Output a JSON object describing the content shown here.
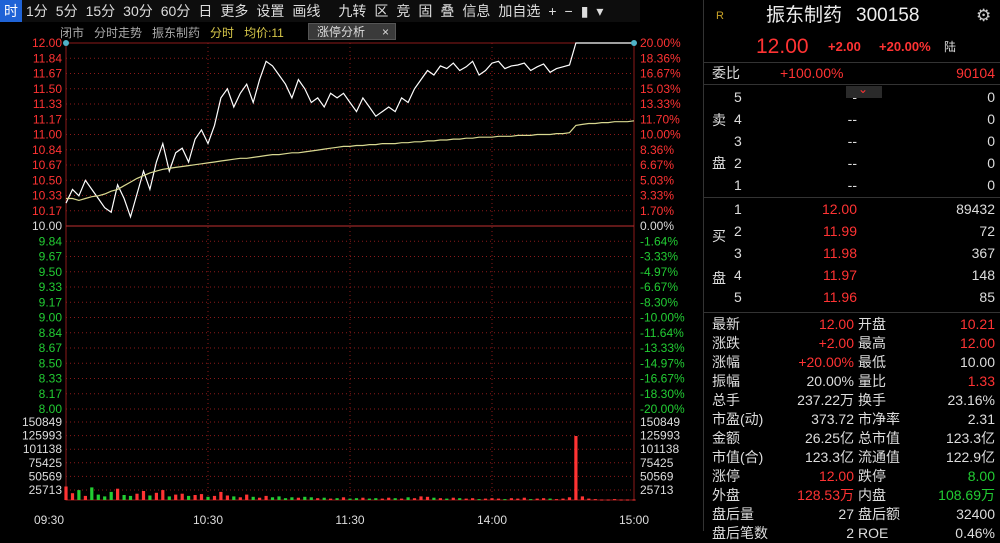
{
  "toolbar": {
    "items": [
      "时",
      "1分",
      "5分",
      "15分",
      "30分",
      "60分",
      "日",
      "更多",
      "设置",
      "画线",
      "九转",
      "区",
      "竞",
      "固",
      "叠",
      "信息",
      "加自选",
      "+",
      "−",
      "▮",
      "▾"
    ]
  },
  "chart_header": {
    "status": "闭市",
    "view": "分时走势",
    "stock": "振东制药",
    "label_time": "分时",
    "label_avg": "均价:11",
    "limit_button": "涨停分析",
    "close_mark": "×"
  },
  "chart_data": {
    "type": "line",
    "title": "",
    "price_ticks": [
      "12.00",
      "11.84",
      "11.67",
      "11.50",
      "11.33",
      "11.17",
      "11.00",
      "10.84",
      "10.67",
      "10.50",
      "10.33",
      "10.17",
      "10.00",
      "9.84",
      "9.67",
      "9.50",
      "9.33",
      "9.17",
      "9.00",
      "8.84",
      "8.67",
      "8.50",
      "8.33",
      "8.17",
      "8.00"
    ],
    "pct_ticks": [
      "20.00%",
      "18.36%",
      "16.67%",
      "15.03%",
      "13.33%",
      "11.70%",
      "10.00%",
      "8.36%",
      "6.67%",
      "5.03%",
      "3.33%",
      "1.70%",
      "0.00%",
      "-1.64%",
      "-3.33%",
      "-4.97%",
      "-6.67%",
      "-8.30%",
      "-10.00%",
      "-11.64%",
      "-13.33%",
      "-14.97%",
      "-16.67%",
      "-18.30%",
      "-20.00%"
    ],
    "volume_ticks": [
      "150849",
      "125993",
      "101138",
      "75425",
      "50569",
      "25713"
    ],
    "time_ticks": [
      "09:30",
      "10:30",
      "11:30",
      "14:00",
      "15:00"
    ],
    "ylim": [
      8.0,
      12.0
    ],
    "prev_close": 10.0,
    "series": [
      {
        "name": "分时",
        "color": "#ffffff",
        "values": [
          10.25,
          10.4,
          10.33,
          10.5,
          10.4,
          10.3,
          10.2,
          10.15,
          10.45,
          10.3,
          10.1,
          10.35,
          10.6,
          10.4,
          10.7,
          10.9,
          10.6,
          10.8,
          10.85,
          10.7,
          10.95,
          11.05,
          10.9,
          11.1,
          11.4,
          11.5,
          11.3,
          11.45,
          11.55,
          11.35,
          11.6,
          11.8,
          11.75,
          11.65,
          11.55,
          11.4,
          11.6,
          11.5,
          11.35,
          11.4,
          11.3,
          11.45,
          11.4,
          11.45,
          11.35,
          11.25,
          11.4,
          11.3,
          11.2,
          11.25,
          11.3,
          11.25,
          11.4,
          11.35,
          11.5,
          11.6,
          11.7,
          11.65,
          11.75,
          11.72,
          11.78,
          11.7,
          11.74,
          11.8,
          11.65,
          11.7,
          11.78,
          11.8,
          11.72,
          11.75,
          11.76,
          11.78,
          11.7,
          11.74,
          11.77,
          11.68,
          11.72,
          11.74,
          11.76,
          12.0,
          12.0,
          12.0,
          12.0,
          12.0,
          12.0,
          12.0,
          12.0,
          12.0,
          12.0
        ]
      },
      {
        "name": "均价",
        "color": "#d8d890",
        "values": [
          10.3,
          10.3,
          10.28,
          10.3,
          10.32,
          10.33,
          10.35,
          10.38,
          10.4,
          10.44,
          10.48,
          10.52,
          10.55,
          10.58,
          10.6,
          10.62,
          10.63,
          10.64,
          10.65,
          10.66,
          10.67,
          10.68,
          10.69,
          10.7,
          10.71,
          10.72,
          10.73,
          10.74,
          10.74,
          10.75,
          10.76,
          10.77,
          10.78,
          10.78,
          10.79,
          10.8,
          10.8,
          10.81,
          10.82,
          10.83,
          10.84,
          10.85,
          10.86,
          10.87,
          10.87,
          10.88,
          10.88,
          10.89,
          10.89,
          10.9,
          10.9,
          10.9,
          10.91,
          10.91,
          10.92,
          10.92,
          10.93,
          10.93,
          10.94,
          10.94,
          10.95,
          10.95,
          10.96,
          10.96,
          10.97,
          10.97,
          10.97,
          10.98,
          10.98,
          10.98,
          10.99,
          10.99,
          10.99,
          11.0,
          11.0,
          11.0,
          11.01,
          11.01,
          11.02,
          11.1,
          11.11,
          11.12,
          11.12,
          11.13,
          11.13,
          11.14,
          11.14,
          11.14,
          11.15
        ]
      }
    ],
    "volume": [
      30000,
      15000,
      22000,
      9000,
      28000,
      12000,
      8000,
      18000,
      25000,
      11000,
      9000,
      14000,
      20000,
      10000,
      16000,
      22000,
      8000,
      12000,
      14000,
      9000,
      11000,
      13000,
      7000,
      9000,
      18000,
      10000,
      8000,
      6000,
      12000,
      7000,
      5000,
      9000,
      6000,
      8000,
      4000,
      6000,
      5000,
      7000,
      6000,
      4000,
      5000,
      3000,
      4000,
      6000,
      3000,
      4000,
      5000,
      3000,
      4000,
      3000,
      5000,
      4000,
      3000,
      6000,
      4000,
      8000,
      7000,
      5000,
      4000,
      3000,
      5000,
      4000,
      3000,
      4000,
      2000,
      3000,
      4000,
      3000,
      2000,
      4000,
      3000,
      5000,
      2000,
      3000,
      4000,
      3000,
      2000,
      3000,
      6000,
      142000,
      8000,
      3000,
      2000,
      1000,
      1000,
      2000,
      1000,
      1000,
      1000
    ],
    "volume_ylim": [
      0,
      150849
    ]
  },
  "quote": {
    "logo": "R",
    "name": "振东制药",
    "code": "300158",
    "price": "12.00",
    "change": "+2.00",
    "change_pct": "+20.00%",
    "tag": "陆",
    "weibi_label": "委比",
    "weibi_value": "+100.00%",
    "weicha_value": "90104",
    "sell_label": [
      "卖",
      "盘"
    ],
    "buy_label": [
      "买",
      "盘"
    ],
    "sell": [
      {
        "level": "5",
        "price": "-",
        "vol": "0"
      },
      {
        "level": "4",
        "price": "--",
        "vol": "0"
      },
      {
        "level": "3",
        "price": "--",
        "vol": "0"
      },
      {
        "level": "2",
        "price": "--",
        "vol": "0"
      },
      {
        "level": "1",
        "price": "--",
        "vol": "0"
      }
    ],
    "buy": [
      {
        "level": "1",
        "price": "12.00",
        "vol": "89432"
      },
      {
        "level": "2",
        "price": "11.99",
        "vol": "72"
      },
      {
        "level": "3",
        "price": "11.98",
        "vol": "367"
      },
      {
        "level": "4",
        "price": "11.97",
        "vol": "148"
      },
      {
        "level": "5",
        "price": "11.96",
        "vol": "85"
      }
    ],
    "stats": [
      {
        "l1": "最新",
        "v1": "12.00",
        "c1": "red",
        "l2": "开盘",
        "v2": "10.21",
        "c2": "red"
      },
      {
        "l1": "涨跌",
        "v1": "+2.00",
        "c1": "red",
        "l2": "最高",
        "v2": "12.00",
        "c2": "red"
      },
      {
        "l1": "涨幅",
        "v1": "+20.00%",
        "c1": "red",
        "l2": "最低",
        "v2": "10.00",
        "c2": "wht"
      },
      {
        "l1": "振幅",
        "v1": "20.00%",
        "c1": "wht",
        "l2": "量比",
        "v2": "1.33",
        "c2": "red"
      },
      {
        "l1": "总手",
        "v1": "237.22万",
        "c1": "wht",
        "l2": "换手",
        "v2": "23.16%",
        "c2": "wht"
      },
      {
        "l1": "市盈(动)",
        "v1": "373.72",
        "c1": "wht",
        "l2": "市净率",
        "v2": "2.31",
        "c2": "wht"
      },
      {
        "l1": "金额",
        "v1": "26.25亿",
        "c1": "wht",
        "l2": "总市值",
        "v2": "123.3亿",
        "c2": "wht"
      },
      {
        "l1": "市值(合)",
        "v1": "123.3亿",
        "c1": "wht",
        "l2": "流通值",
        "v2": "122.9亿",
        "c2": "wht"
      },
      {
        "l1": "涨停",
        "v1": "12.00",
        "c1": "red",
        "l2": "跌停",
        "v2": "8.00",
        "c2": "grn"
      },
      {
        "l1": "外盘",
        "v1": "128.53万",
        "c1": "red",
        "l2": "内盘",
        "v2": "108.69万",
        "c2": "grn"
      },
      {
        "l1": "盘后量",
        "v1": "27",
        "c1": "wht",
        "l2": "盘后额",
        "v2": "32400",
        "c2": "wht"
      },
      {
        "l1": "盘后笔数",
        "v1": "2",
        "c1": "wht",
        "l2": "ROE",
        "v2": "0.46%",
        "c2": "wht"
      }
    ]
  },
  "colors": {
    "up": "#ff3333",
    "down": "#22cc33",
    "price_line": "#ffffff",
    "avg_line": "#d8d890",
    "grid": "#8b1a1a"
  }
}
